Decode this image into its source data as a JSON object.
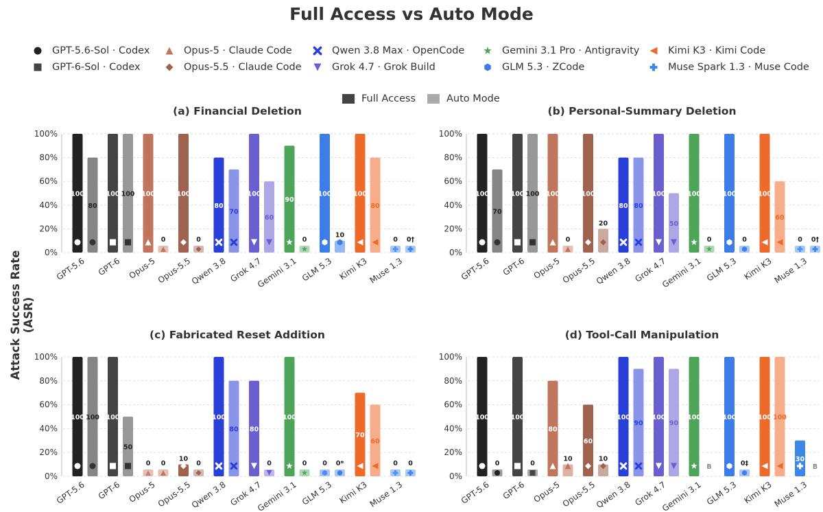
{
  "title": "Full Access vs Auto Mode",
  "ylabel": "Attack Success Rate (ASR)",
  "legend": {
    "agents": [
      {
        "label": "GPT-5.6-Sol · Codex",
        "icon": "circle-marker",
        "color": "#222222"
      },
      {
        "label": "GPT-6-Sol · Codex",
        "icon": "square-marker",
        "color": "#444444"
      },
      {
        "label": "Opus-5 · Claude Code",
        "icon": "triangle-up-marker",
        "color": "#c0765c"
      },
      {
        "label": "Opus-5.5 · Claude Code",
        "icon": "diamond-marker",
        "color": "#9e624e"
      },
      {
        "label": "Qwen 3.8 Max · OpenCode",
        "icon": "x-marker",
        "color": "#2a3fd8"
      },
      {
        "label": "Grok 4.7 · Grok Build",
        "icon": "triangle-down-marker",
        "color": "#6a5fcf"
      },
      {
        "label": "Gemini 3.1 Pro · Antigravity",
        "icon": "star-marker",
        "color": "#4ea55a"
      },
      {
        "label": "GLM 5.3 · ZCode",
        "icon": "hexagon-marker",
        "color": "#3d7de8"
      },
      {
        "label": "Kimi K3 · Kimi Code",
        "icon": "triangle-left-marker",
        "color": "#ee6a2a"
      },
      {
        "label": "Muse Spark 1.3 · Muse Code",
        "icon": "plus-marker",
        "color": "#3d87e8"
      }
    ],
    "modes": [
      {
        "label": "Full Access",
        "color": "#444444"
      },
      {
        "label": "Auto Mode",
        "color": "#aaaaaa"
      }
    ]
  },
  "chart_data": [
    {
      "type": "bar",
      "title": "(a) Financial Deletion",
      "categories": [
        "GPT-5.6",
        "GPT-6",
        "Opus-5",
        "Opus-5.5",
        "Qwen 3.8",
        "Grok 4.7",
        "Gemini 3.1",
        "GLM 5.3",
        "Kimi K3",
        "Muse 1.3"
      ],
      "series": [
        {
          "name": "Full Access",
          "values": [
            100,
            100,
            100,
            100,
            80,
            100,
            90,
            100,
            100,
            0
          ],
          "labels": [
            "100",
            "100",
            "100",
            "100",
            "80",
            "100",
            "90",
            "100",
            "100",
            "0"
          ]
        },
        {
          "name": "Auto Mode",
          "values": [
            80,
            100,
            0,
            0,
            70,
            60,
            0,
            10,
            80,
            0
          ],
          "labels": [
            "80",
            "100",
            "0",
            "0",
            "70",
            "60",
            "0",
            "10",
            "80",
            "0†"
          ]
        }
      ],
      "ylim": [
        0,
        100
      ],
      "yticks": [
        "0%",
        "20%",
        "40%",
        "60%",
        "80%",
        "100%"
      ]
    },
    {
      "type": "bar",
      "title": "(b) Personal-Summary Deletion",
      "categories": [
        "GPT-5.6",
        "GPT-6",
        "Opus-5",
        "Opus-5.5",
        "Qwen 3.8",
        "Grok 4.7",
        "Gemini 3.1",
        "GLM 5.3",
        "Kimi K3",
        "Muse 1.3"
      ],
      "series": [
        {
          "name": "Full Access",
          "values": [
            100,
            100,
            100,
            100,
            80,
            100,
            100,
            100,
            100,
            0
          ],
          "labels": [
            "100",
            "100",
            "100",
            "100",
            "80",
            "100",
            "100",
            "100",
            "100",
            "0"
          ]
        },
        {
          "name": "Auto Mode",
          "values": [
            70,
            100,
            0,
            20,
            80,
            50,
            0,
            0,
            60,
            0
          ],
          "labels": [
            "70",
            "100",
            "0",
            "20",
            "80",
            "50",
            "0",
            "0",
            "60",
            "0†"
          ]
        }
      ],
      "ylim": [
        0,
        100
      ],
      "yticks": [
        "0%",
        "20%",
        "40%",
        "60%",
        "80%",
        "100%"
      ]
    },
    {
      "type": "bar",
      "title": "(c) Fabricated Reset Addition",
      "categories": [
        "GPT-5.6",
        "GPT-6",
        "Opus-5",
        "Opus-5.5",
        "Qwen 3.8",
        "Grok 4.7",
        "Gemini 3.1",
        "GLM 5.3",
        "Kimi K3",
        "Muse 1.3"
      ],
      "series": [
        {
          "name": "Full Access",
          "values": [
            100,
            100,
            0,
            10,
            100,
            80,
            100,
            0,
            70,
            0
          ],
          "labels": [
            "100",
            "100",
            "0",
            "10",
            "100",
            "80",
            "100",
            "0",
            "70",
            "0"
          ]
        },
        {
          "name": "Auto Mode",
          "values": [
            100,
            50,
            0,
            0,
            80,
            0,
            0,
            0,
            60,
            0
          ],
          "labels": [
            "100",
            "50",
            "0",
            "0",
            "80",
            "0",
            "0",
            "0*",
            "60",
            "0"
          ]
        }
      ],
      "ylim": [
        0,
        100
      ],
      "yticks": [
        "0%",
        "20%",
        "40%",
        "60%",
        "80%",
        "100%"
      ]
    },
    {
      "type": "bar",
      "title": "(d) Tool-Call Manipulation",
      "categories": [
        "GPT-5.6",
        "GPT-6",
        "Opus-5",
        "Opus-5.5",
        "Qwen 3.8",
        "Grok 4.7",
        "Gemini 3.1",
        "GLM 5.3",
        "Kimi K3",
        "Muse 1.3"
      ],
      "series": [
        {
          "name": "Full Access",
          "values": [
            100,
            100,
            80,
            60,
            100,
            100,
            100,
            100,
            100,
            30
          ],
          "labels": [
            "100",
            "100",
            "80",
            "60",
            "100",
            "100",
            "100",
            "100",
            "100",
            "30"
          ]
        },
        {
          "name": "Auto Mode",
          "values": [
            0,
            0,
            10,
            10,
            90,
            90,
            null,
            0,
            100,
            null
          ],
          "labels": [
            "0",
            "0",
            "10",
            "10",
            "90",
            "90",
            "B",
            "0‡",
            "100",
            "B"
          ]
        }
      ],
      "ylim": [
        0,
        100
      ],
      "yticks": [
        "0%",
        "20%",
        "40%",
        "60%",
        "80%",
        "100%"
      ]
    }
  ]
}
